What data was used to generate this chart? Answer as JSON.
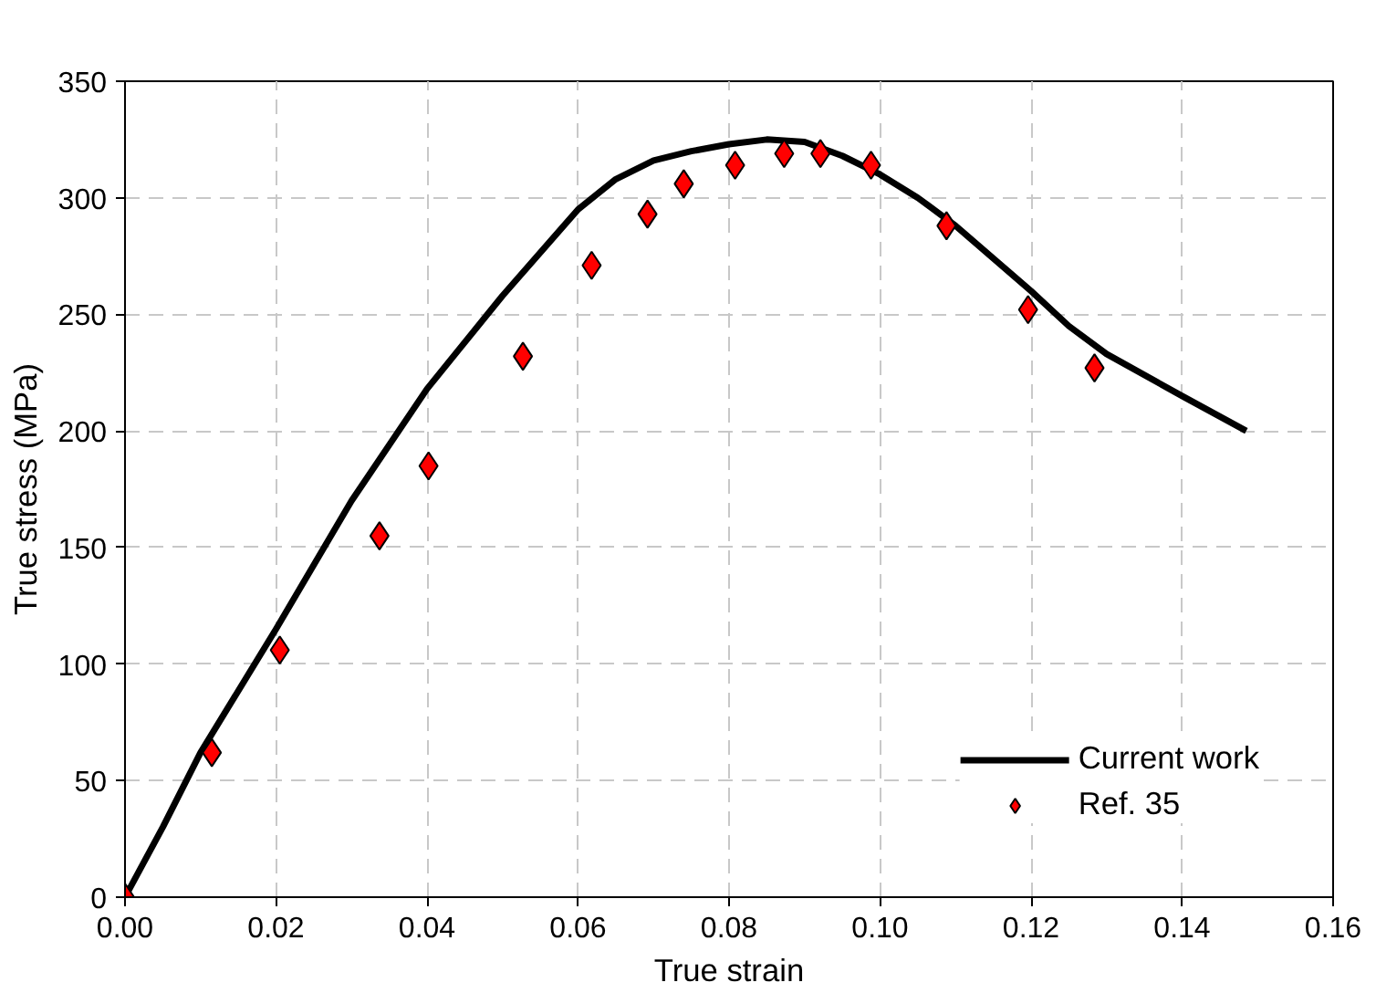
{
  "chart_data": {
    "type": "line",
    "xlabel": "True strain",
    "ylabel": "True stress (MPa)",
    "xlim": [
      0,
      0.16
    ],
    "xticks": [
      {
        "value": 0,
        "label": "0.00"
      },
      {
        "value": 0.02,
        "label": "0.02"
      },
      {
        "value": 0.04,
        "label": "0.04"
      },
      {
        "value": 0.06,
        "label": "0.06"
      },
      {
        "value": 0.08,
        "label": "0.08"
      },
      {
        "value": 0.1,
        "label": "0.10"
      },
      {
        "value": 0.12,
        "label": "0.12"
      },
      {
        "value": 0.14,
        "label": "0.14"
      },
      {
        "value": 0.16,
        "label": "0.16"
      }
    ],
    "ylim": [
      0,
      350
    ],
    "yticks": [
      0,
      50,
      100,
      150,
      200,
      250,
      300,
      350
    ],
    "grid": true,
    "legend": "bottom right",
    "series": [
      {
        "name": "Current work",
        "color": "#000000",
        "marker": "none",
        "line_style": "solid",
        "x": [
          0,
          0.005,
          0.01,
          0.02,
          0.03,
          0.04,
          0.05,
          0.06,
          0.065,
          0.07,
          0.075,
          0.08,
          0.085,
          0.09,
          0.095,
          0.1,
          0.105,
          0.11,
          0.115,
          0.12,
          0.125,
          0.13,
          0.14,
          0.1485
        ],
        "values": [
          0,
          30,
          62,
          115,
          170,
          218,
          258,
          295,
          308,
          316,
          320,
          323,
          325,
          324,
          318,
          310,
          300,
          288,
          274,
          260,
          245,
          233,
          215,
          200
        ]
      },
      {
        "name": "Ref. 35",
        "type": "scatter",
        "color": "#ff0000",
        "marker": "diamond",
        "x": [
          0,
          0.0115,
          0.0205,
          0.0337,
          0.0402,
          0.0527,
          0.0618,
          0.0692,
          0.074,
          0.0808,
          0.0873,
          0.0921,
          0.0988,
          0.1088,
          0.1196,
          0.1284
        ],
        "values": [
          0,
          62,
          106,
          155,
          185,
          232,
          271,
          293,
          306,
          314,
          319,
          319,
          314,
          288,
          252,
          227
        ]
      }
    ]
  }
}
